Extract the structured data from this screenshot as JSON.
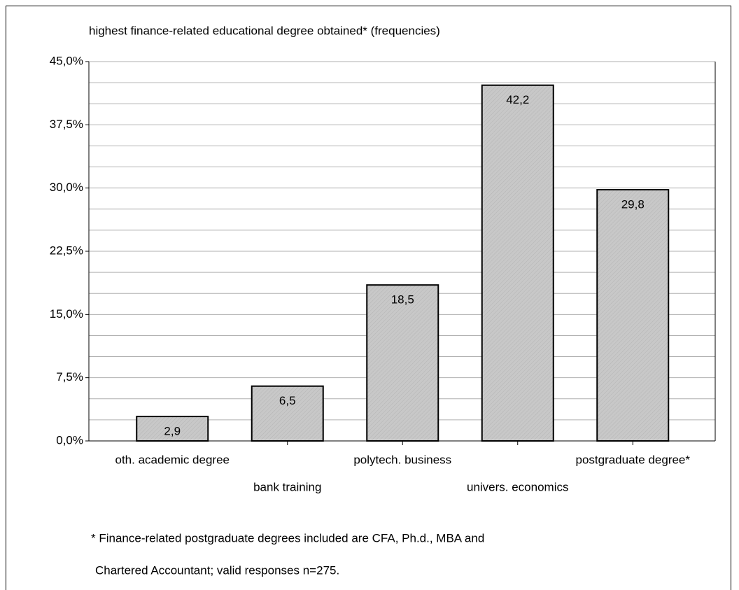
{
  "chart_data": {
    "type": "bar",
    "title": "highest finance-related educational degree obtained* (frequencies)",
    "categories": [
      "oth. academic degree",
      "bank training",
      "polytech. business",
      "univers. economics",
      "postgraduate degree*"
    ],
    "values": [
      2.9,
      6.5,
      18.5,
      42.2,
      29.8
    ],
    "value_labels": [
      "2,9",
      "6,5",
      "18,5",
      "42,2",
      "29,8"
    ],
    "color": "#c8c8c8",
    "ylim": [
      0,
      45
    ],
    "yticks": [
      {
        "value": 0,
        "label": "0,0%"
      },
      {
        "value": 7.5,
        "label": "7,5%"
      },
      {
        "value": 15,
        "label": "15,0%"
      },
      {
        "value": 22.5,
        "label": "22,5%"
      },
      {
        "value": 30,
        "label": "30,0%"
      },
      {
        "value": 37.5,
        "label": "37,5%"
      },
      {
        "value": 45,
        "label": "45,0%"
      }
    ],
    "minor_yticks": [
      2.5,
      5,
      10,
      12.5,
      17.5,
      20,
      25,
      27.5,
      32.5,
      35,
      40,
      42.5
    ],
    "grid": true,
    "notes": [
      "* Finance-related postgraduate degrees included are CFA, Ph.d., MBA and",
      "Chartered Accountant; valid responses n=275."
    ]
  }
}
